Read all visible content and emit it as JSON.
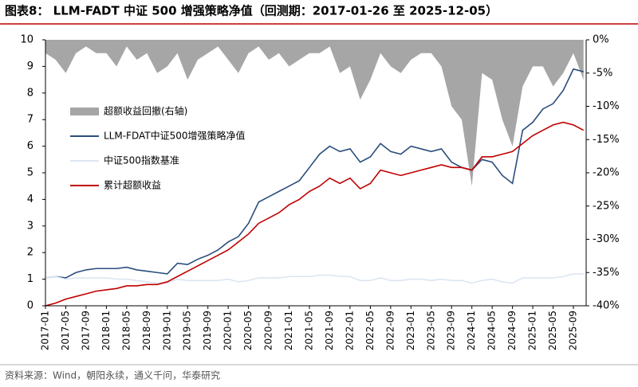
{
  "chart_data": {
    "type": "line",
    "title": "图表8：  LLM-FADT 中证 500 增强策略净值（回测期：2017-01-26 至 2025-12-05）",
    "source": "资料来源：Wind，朝阳永续，通义千问，华泰研究",
    "x": [
      "2017-01",
      "2017-03",
      "2017-05",
      "2017-07",
      "2017-09",
      "2017-11",
      "2018-01",
      "2018-03",
      "2018-05",
      "2018-07",
      "2018-09",
      "2018-11",
      "2019-01",
      "2019-03",
      "2019-05",
      "2019-07",
      "2019-09",
      "2019-11",
      "2020-01",
      "2020-03",
      "2020-05",
      "2020-07",
      "2020-09",
      "2020-11",
      "2021-01",
      "2021-03",
      "2021-05",
      "2021-07",
      "2021-09",
      "2021-11",
      "2022-01",
      "2022-03",
      "2022-05",
      "2022-07",
      "2022-09",
      "2022-11",
      "2023-01",
      "2023-03",
      "2023-05",
      "2023-07",
      "2023-09",
      "2023-11",
      "2024-01",
      "2024-03",
      "2024-05",
      "2024-07",
      "2024-09",
      "2024-11",
      "2025-01",
      "2025-03",
      "2025-05",
      "2025-07",
      "2025-09",
      "2025-11"
    ],
    "xticks": [
      "2017-01",
      "2017-05",
      "2017-09",
      "2018-01",
      "2018-05",
      "2018-09",
      "2019-01",
      "2019-05",
      "2019-09",
      "2020-01",
      "2020-05",
      "2020-09",
      "2021-01",
      "2021-05",
      "2021-09",
      "2022-01",
      "2022-05",
      "2022-09",
      "2023-01",
      "2023-05",
      "2023-09",
      "2024-01",
      "2024-05",
      "2024-09",
      "2025-01",
      "2025-05",
      "2025-09"
    ],
    "ylim": [
      0,
      10
    ],
    "yticks": [
      0,
      1,
      2,
      3,
      4,
      5,
      6,
      7,
      8,
      9,
      10
    ],
    "y2lim": [
      -40,
      0
    ],
    "y2ticks": [
      {
        "value": 0,
        "label": "0%"
      },
      {
        "value": -5,
        "label": "-5%"
      },
      {
        "value": -10,
        "label": "-10%"
      },
      {
        "value": -15,
        "label": "-15%"
      },
      {
        "value": -20,
        "label": "-20%"
      },
      {
        "value": -25,
        "label": "-25%"
      },
      {
        "value": -30,
        "label": "-30%"
      },
      {
        "value": -35,
        "label": "-35%"
      },
      {
        "value": -40,
        "label": "-40%"
      }
    ],
    "series": [
      {
        "name": "超额收益回撤(右轴)",
        "type": "area",
        "axis": "y2",
        "color": "#a6a6a6",
        "values": [
          -2,
          -3,
          -5,
          -2,
          -1,
          -2,
          -2,
          -4,
          -1,
          -3,
          -2,
          -5,
          -4,
          -2,
          -6,
          -3,
          -2,
          -1,
          -3,
          -5,
          -2,
          -1,
          -3,
          -2,
          -4,
          -3,
          -2,
          -2,
          -1,
          -5,
          -4,
          -9,
          -6,
          -2,
          -4,
          -5,
          -3,
          -2,
          -2,
          -4,
          -10,
          -12,
          -22,
          -5,
          -6,
          -12,
          -16,
          -7,
          -4,
          -4,
          -7,
          -5,
          -2,
          -6
        ]
      },
      {
        "name": "LLM-FDAT中证500增强策略净值",
        "type": "line",
        "color": "#2a4e7c",
        "values": [
          1.05,
          1.1,
          1.05,
          1.25,
          1.35,
          1.4,
          1.4,
          1.4,
          1.45,
          1.35,
          1.3,
          1.25,
          1.2,
          1.6,
          1.55,
          1.75,
          1.9,
          2.1,
          2.4,
          2.6,
          3.1,
          3.9,
          4.1,
          4.3,
          4.5,
          4.7,
          5.2,
          5.7,
          6.0,
          5.8,
          5.9,
          5.4,
          5.6,
          6.1,
          5.8,
          5.7,
          6.0,
          5.9,
          5.8,
          5.9,
          5.4,
          5.2,
          5.1,
          5.5,
          5.4,
          4.9,
          4.6,
          6.6,
          6.9,
          7.4,
          7.6,
          8.1,
          8.9,
          8.8
        ]
      },
      {
        "name": "中证500指数基准",
        "type": "line",
        "color": "#dce6f2",
        "values": [
          1.05,
          1.1,
          1.0,
          1.05,
          1.05,
          1.05,
          1.05,
          1.0,
          1.0,
          0.95,
          0.9,
          0.85,
          0.85,
          1.0,
          0.95,
          0.95,
          0.95,
          0.95,
          1.0,
          0.9,
          0.95,
          1.05,
          1.05,
          1.05,
          1.1,
          1.1,
          1.1,
          1.15,
          1.15,
          1.1,
          1.1,
          0.95,
          0.95,
          1.05,
          0.95,
          0.95,
          1.0,
          1.0,
          0.95,
          1.0,
          0.95,
          0.95,
          0.85,
          0.95,
          1.0,
          0.9,
          0.85,
          1.05,
          1.05,
          1.05,
          1.05,
          1.1,
          1.2,
          1.2
        ]
      },
      {
        "name": "累计超额收益",
        "type": "line",
        "color": "#c00000",
        "values": [
          0,
          0.1,
          0.25,
          0.35,
          0.45,
          0.55,
          0.6,
          0.65,
          0.75,
          0.75,
          0.8,
          0.8,
          0.9,
          1.1,
          1.3,
          1.5,
          1.7,
          1.9,
          2.1,
          2.4,
          2.7,
          3.1,
          3.3,
          3.5,
          3.8,
          4.0,
          4.3,
          4.5,
          4.8,
          4.6,
          4.8,
          4.4,
          4.6,
          5.1,
          5.0,
          4.9,
          5.0,
          5.1,
          5.2,
          5.3,
          5.2,
          5.2,
          5.1,
          5.6,
          5.6,
          5.7,
          5.8,
          6.1,
          6.4,
          6.6,
          6.8,
          6.9,
          6.8,
          6.6
        ]
      }
    ]
  }
}
